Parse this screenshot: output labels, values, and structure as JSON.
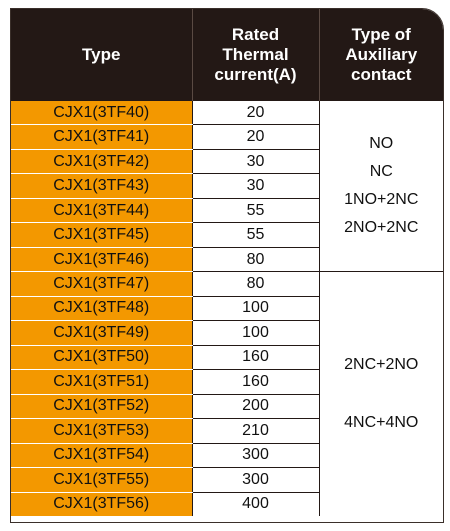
{
  "headers": {
    "type": "Type",
    "current": [
      "Rated",
      "Thermal",
      "current(A)"
    ],
    "aux": [
      "Type of",
      "Auxiliary",
      "contact"
    ]
  },
  "rows": [
    {
      "type": "CJX1(3TF40)",
      "current": "20"
    },
    {
      "type": "CJX1(3TF41)",
      "current": "20"
    },
    {
      "type": "CJX1(3TF42)",
      "current": "30"
    },
    {
      "type": "CJX1(3TF43)",
      "current": "30"
    },
    {
      "type": "CJX1(3TF44)",
      "current": "55"
    },
    {
      "type": "CJX1(3TF45)",
      "current": "55"
    },
    {
      "type": "CJX1(3TF46)",
      "current": "80"
    },
    {
      "type": "CJX1(3TF47)",
      "current": "80"
    },
    {
      "type": "CJX1(3TF48)",
      "current": "100"
    },
    {
      "type": "CJX1(3TF49)",
      "current": "100"
    },
    {
      "type": "CJX1(3TF50)",
      "current": "160"
    },
    {
      "type": "CJX1(3TF51)",
      "current": "160"
    },
    {
      "type": "CJX1(3TF52)",
      "current": "200"
    },
    {
      "type": "CJX1(3TF53)",
      "current": "210"
    },
    {
      "type": "CJX1(3TF54)",
      "current": "300"
    },
    {
      "type": "CJX1(3TF55)",
      "current": "300"
    },
    {
      "type": "CJX1(3TF56)",
      "current": "400"
    }
  ],
  "aux_groups": [
    {
      "lines": [
        "NO",
        "NC",
        "1NO+2NC",
        "2NO+2NC"
      ]
    },
    {
      "lines": [
        "2NC+2NO",
        "4NC+4NO"
      ]
    }
  ],
  "colors": {
    "header_bg": "#231815",
    "type_bg": "#f39800",
    "header_text": "#ffffff"
  }
}
